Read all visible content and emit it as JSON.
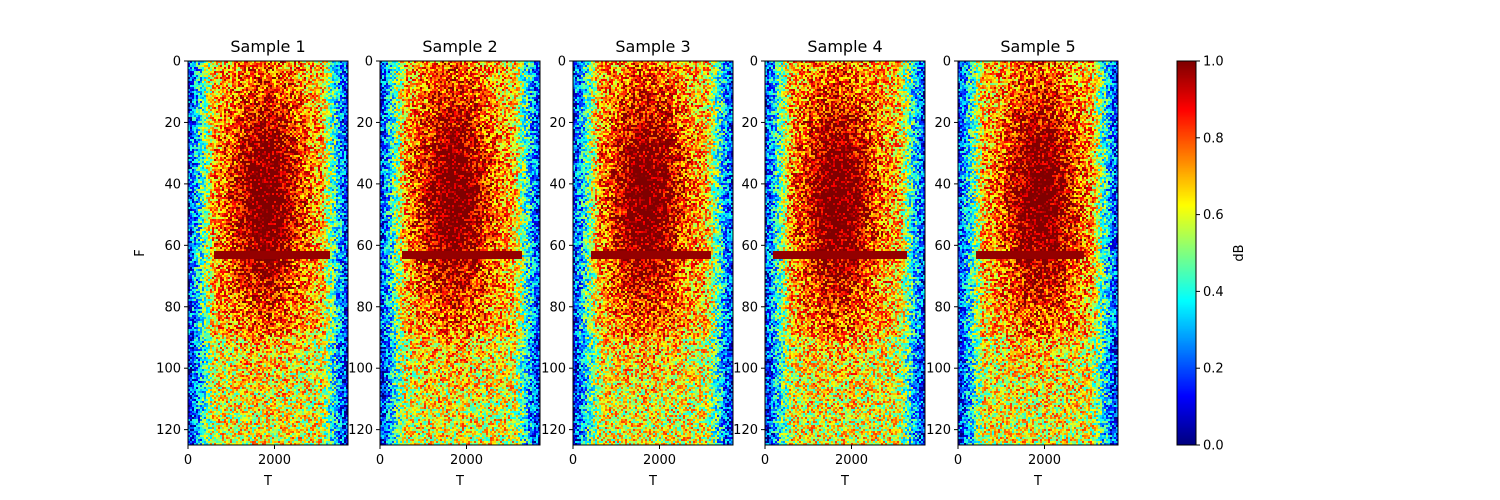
{
  "chart_data": {
    "type": "heatmap",
    "colormap": "jet",
    "panels": [
      {
        "title": "Sample 1",
        "xlabel": "T",
        "ylabel": "F",
        "xticks": [
          0,
          2000
        ],
        "yticks": [
          0,
          20,
          40,
          60,
          80,
          100,
          120
        ],
        "xlim": [
          0,
          3700
        ],
        "ylim": [
          125,
          0
        ],
        "band_row": 63,
        "band_x_range": [
          600,
          3300
        ],
        "core_center_x": 1800
      },
      {
        "title": "Sample 2",
        "xlabel": "T",
        "ylabel": "",
        "xticks": [
          0,
          2000
        ],
        "yticks": [
          0,
          20,
          40,
          60,
          80,
          100,
          120
        ],
        "xlim": [
          0,
          3700
        ],
        "ylim": [
          125,
          0
        ],
        "band_row": 63,
        "band_x_range": [
          500,
          3300
        ],
        "core_center_x": 1700
      },
      {
        "title": "Sample 3",
        "xlabel": "T",
        "ylabel": "",
        "xticks": [
          0,
          2000
        ],
        "yticks": [
          0,
          20,
          40,
          60,
          80,
          100,
          120
        ],
        "xlim": [
          0,
          3700
        ],
        "ylim": [
          125,
          0
        ],
        "band_row": 63,
        "band_x_range": [
          400,
          3200
        ],
        "core_center_x": 1700
      },
      {
        "title": "Sample 4",
        "xlabel": "T",
        "ylabel": "",
        "xticks": [
          0,
          2000
        ],
        "yticks": [
          0,
          20,
          40,
          60,
          80,
          100,
          120
        ],
        "xlim": [
          0,
          3700
        ],
        "ylim": [
          125,
          0
        ],
        "band_row": 63,
        "band_x_range": [
          200,
          3300
        ],
        "core_center_x": 1700
      },
      {
        "title": "Sample 5",
        "xlabel": "T",
        "ylabel": "",
        "xticks": [
          0,
          2000
        ],
        "yticks": [
          0,
          20,
          40,
          60,
          80,
          100,
          120
        ],
        "xlim": [
          0,
          3700
        ],
        "ylim": [
          125,
          0
        ],
        "band_row": 63,
        "band_x_range": [
          400,
          2900
        ],
        "core_center_x": 1900
      }
    ],
    "colorbar": {
      "label": "dB",
      "ticks": [
        "0.0",
        "0.2",
        "0.4",
        "0.6",
        "0.8",
        "1.0"
      ],
      "range": [
        0.0,
        1.0
      ]
    }
  }
}
